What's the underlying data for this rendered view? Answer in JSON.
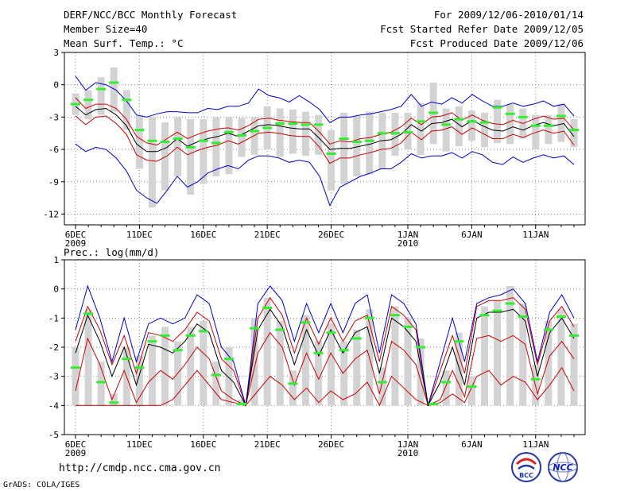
{
  "header": {
    "title": "DERF/NCC/BCC Monthly Forecast",
    "member_size": "Member Size=40",
    "variable": "Mean Surf. Temp.: °C",
    "forecast_period": "For 2009/12/06-2010/01/14",
    "start_date": "Fcst Started Refer Date 2009/12/05",
    "produced_date": "Fcst Produced Date 2009/12/06"
  },
  "footer": {
    "url": "http://cmdp.ncc.cma.gov.cn",
    "grads_credit": "GrADS: COLA/IGES",
    "logo_bcc_text": "BCC",
    "logo_ncc_text": "NCC"
  },
  "colors": {
    "obs_bar": "#d3d3d3",
    "ensemble_mean": "#000000",
    "inner_spread": "#cc0000",
    "outer_envelope": "#0000cc",
    "marker": "#33ee33",
    "grid": "#808080"
  },
  "chart_data": [
    {
      "type": "box-line",
      "title": "Mean Surf. Temp.: °C",
      "x_tick_labels": [
        "6DEC",
        "11DEC",
        "16DEC",
        "21DEC",
        "26DEC",
        "1JAN",
        "6JAN",
        "11JAN"
      ],
      "x_tick_days": [
        0,
        5,
        10,
        15,
        20,
        26,
        31,
        36
      ],
      "x_year_labels": [
        {
          "day": 0,
          "label": "2009"
        },
        {
          "day": 26,
          "label": "2010"
        }
      ],
      "days": 40,
      "ylim": [
        -13,
        3
      ],
      "yticks": [
        3,
        0,
        -3,
        -6,
        -9,
        -12
      ],
      "grid": true,
      "series": [
        {
          "name": "ensemble mean",
          "values": [
            -2.0,
            -2.8,
            -2.3,
            -2.2,
            -2.8,
            -3.8,
            -5.5,
            -6.2,
            -6.2,
            -5.8,
            -5.0,
            -5.7,
            -5.3,
            -5.0,
            -4.8,
            -4.5,
            -4.8,
            -4.3,
            -3.8,
            -3.7,
            -3.8,
            -4.0,
            -4.1,
            -4.1,
            -5.0,
            -6.0,
            -5.9,
            -5.9,
            -5.7,
            -5.5,
            -5.2,
            -5.1,
            -4.6,
            -3.7,
            -4.3,
            -3.6,
            -3.5,
            -3.2,
            -3.9,
            -3.3,
            -3.8,
            -4.2,
            -4.3,
            -3.9,
            -4.2,
            -3.8,
            -3.5,
            -3.8,
            -3.6,
            -4.8
          ]
        },
        {
          "name": "inner upper",
          "values": [
            -1.2,
            -2.2,
            -1.8,
            -1.8,
            -2.2,
            -3.2,
            -4.8,
            -5.4,
            -5.6,
            -5.0,
            -4.4,
            -5.0,
            -4.6,
            -4.3,
            -4.1,
            -4.0,
            -4.2,
            -3.8,
            -3.2,
            -3.1,
            -3.3,
            -3.4,
            -3.5,
            -3.5,
            -4.4,
            -5.5,
            -5.2,
            -5.3,
            -5.0,
            -4.9,
            -4.6,
            -4.4,
            -3.9,
            -3.1,
            -3.7,
            -3.0,
            -2.9,
            -2.6,
            -3.3,
            -2.8,
            -3.3,
            -3.6,
            -3.7,
            -3.3,
            -3.6,
            -3.2,
            -2.9,
            -3.2,
            -3.1,
            -4.2
          ]
        },
        {
          "name": "inner lower",
          "values": [
            -2.9,
            -3.7,
            -3.0,
            -2.9,
            -3.6,
            -4.6,
            -6.5,
            -7.0,
            -7.1,
            -6.6,
            -5.8,
            -6.5,
            -6.1,
            -5.8,
            -5.6,
            -5.2,
            -5.5,
            -5.0,
            -4.5,
            -4.4,
            -4.5,
            -4.7,
            -4.8,
            -4.8,
            -5.8,
            -7.3,
            -6.8,
            -6.8,
            -6.5,
            -6.3,
            -6.0,
            -5.9,
            -5.4,
            -4.4,
            -5.1,
            -4.3,
            -4.2,
            -3.9,
            -4.6,
            -4.0,
            -4.5,
            -5.0,
            -5.0,
            -4.6,
            -4.9,
            -4.5,
            -4.2,
            -4.5,
            -4.3,
            -5.6
          ]
        },
        {
          "name": "upper envelope",
          "values": [
            0.8,
            -0.5,
            0.2,
            0.0,
            -0.5,
            -1.5,
            -2.8,
            -3.0,
            -2.7,
            -2.5,
            -2.5,
            -2.6,
            -2.6,
            -2.2,
            -2.3,
            -2.0,
            -2.0,
            -1.7,
            -0.4,
            -1.0,
            -1.2,
            -1.6,
            -1.0,
            -1.6,
            -2.3,
            -3.5,
            -3.0,
            -3.0,
            -2.8,
            -2.7,
            -2.5,
            -2.3,
            -2.0,
            -0.9,
            -2.0,
            -1.6,
            -1.8,
            -1.2,
            -1.7,
            -0.9,
            -1.5,
            -2.0,
            -2.0,
            -1.7,
            -2.0,
            -1.8,
            -1.5,
            -2.0,
            -1.8,
            -2.9
          ]
        },
        {
          "name": "lower envelope",
          "values": [
            -5.5,
            -6.2,
            -5.8,
            -6.0,
            -6.8,
            -8.0,
            -9.8,
            -10.5,
            -11.0,
            -9.8,
            -8.5,
            -9.5,
            -9.0,
            -8.2,
            -7.8,
            -7.5,
            -7.8,
            -7.0,
            -6.6,
            -6.6,
            -6.8,
            -7.2,
            -7.0,
            -7.2,
            -8.5,
            -11.2,
            -9.5,
            -9.0,
            -8.5,
            -8.2,
            -7.8,
            -7.8,
            -7.2,
            -6.4,
            -6.8,
            -6.6,
            -6.6,
            -6.3,
            -6.8,
            -6.2,
            -6.5,
            -7.2,
            -7.4,
            -6.7,
            -7.2,
            -6.8,
            -6.5,
            -6.8,
            -6.6,
            -7.4
          ]
        },
        {
          "name": "obs markers",
          "values": [
            -1.8,
            -1.4,
            -0.4,
            0.2,
            -1.4,
            -4.2,
            -5.2,
            -5.3,
            -5.0,
            -5.8,
            -5.2,
            -5.4,
            -4.4,
            -4.7,
            -4.3,
            -4.0,
            -3.6,
            -3.6,
            -3.7,
            -3.7,
            -6.4,
            -5.0,
            -5.3,
            -5.2,
            -4.5,
            -4.5,
            -4.4,
            -3.4,
            -2.6,
            -3.7,
            -3.2,
            -3.4,
            -3.5,
            -2.1,
            -2.7,
            -3.0,
            -3.8,
            -3.8,
            -2.9,
            -4.2
          ]
        },
        {
          "name": "bar top",
          "values": [
            -0.8,
            -0.5,
            0.7,
            1.6,
            -0.5,
            -2.8,
            -3.0,
            -3.5,
            -3.0,
            -3.2,
            -3.2,
            -3.0,
            -3.0,
            -3.1,
            -3.0,
            -2.0,
            -2.2,
            -2.3,
            -2.5,
            -2.8,
            -4.2,
            -2.6,
            -2.9,
            -2.5,
            -2.6,
            -2.6,
            -2.6,
            -1.7,
            0.2,
            -2.2,
            -2.0,
            -2.4,
            -2.6,
            -1.4,
            -1.8,
            -2.2,
            -2.8,
            -2.8,
            -1.8,
            -3.2
          ]
        },
        {
          "name": "bar bottom",
          "values": [
            -2.8,
            -3.2,
            -2.8,
            -2.5,
            -4.2,
            -7.8,
            -11.4,
            -9.8,
            -8.5,
            -10.2,
            -9.2,
            -8.5,
            -8.3,
            -6.7,
            -6.5,
            -6.0,
            -6.7,
            -6.4,
            -6.6,
            -6.5,
            -9.8,
            -9.2,
            -8.5,
            -8.3,
            -7.8,
            -6.6,
            -6.0,
            -6.5,
            -5.5,
            -6.2,
            -5.7,
            -5.2,
            -5.8,
            -5.4,
            -5.5,
            -5.0,
            -6.0,
            -5.5,
            -5.3,
            -5.8
          ]
        }
      ]
    },
    {
      "type": "box-line",
      "title": "Prec.: log(mm/d)",
      "x_tick_labels": [
        "6DEC",
        "11DEC",
        "16DEC",
        "21DEC",
        "26DEC",
        "1JAN",
        "6JAN",
        "11JAN"
      ],
      "x_tick_days": [
        0,
        5,
        10,
        15,
        20,
        26,
        31,
        36
      ],
      "x_year_labels": [
        {
          "day": 0,
          "label": "2009"
        },
        {
          "day": 26,
          "label": "2010"
        }
      ],
      "days": 40,
      "ylim": [
        -5,
        1
      ],
      "yticks": [
        1,
        0,
        -1,
        -2,
        -3,
        -4,
        -5
      ],
      "grid": true,
      "series": [
        {
          "name": "ensemble mean",
          "values": [
            -2.2,
            -0.9,
            -1.8,
            -3.0,
            -2.0,
            -3.3,
            -1.9,
            -2.0,
            -2.2,
            -1.8,
            -1.2,
            -1.5,
            -2.8,
            -3.2,
            -4.0,
            -1.4,
            -0.7,
            -1.3,
            -2.6,
            -1.4,
            -2.3,
            -1.4,
            -2.2,
            -1.5,
            -1.3,
            -2.9,
            -1.0,
            -1.3,
            -1.8,
            -4.0,
            -3.2,
            -2.0,
            -3.3,
            -1.0,
            -0.8,
            -0.8,
            -0.7,
            -1.1,
            -3.0,
            -1.5,
            -1.0,
            -1.7
          ]
        },
        {
          "name": "inner upper",
          "values": [
            -1.8,
            -0.6,
            -1.4,
            -2.6,
            -1.6,
            -2.9,
            -1.5,
            -1.6,
            -1.8,
            -1.4,
            -0.8,
            -1.1,
            -2.4,
            -2.8,
            -4.0,
            -1.0,
            -0.3,
            -0.9,
            -2.2,
            -1.0,
            -1.9,
            -1.0,
            -1.8,
            -1.1,
            -0.9,
            -2.5,
            -0.6,
            -0.9,
            -1.4,
            -4.0,
            -2.8,
            -1.6,
            -2.9,
            -0.6,
            -0.4,
            -0.4,
            -0.3,
            -0.7,
            -2.6,
            -1.1,
            -0.6,
            -1.3
          ]
        },
        {
          "name": "inner lower",
          "values": [
            -3.5,
            -1.7,
            -2.6,
            -3.8,
            -2.8,
            -3.9,
            -3.2,
            -2.8,
            -3.1,
            -2.6,
            -2.0,
            -2.4,
            -3.5,
            -3.8,
            -4.0,
            -2.2,
            -1.5,
            -2.0,
            -3.3,
            -2.2,
            -3.1,
            -2.2,
            -2.9,
            -2.4,
            -2.1,
            -3.6,
            -1.8,
            -2.1,
            -2.6,
            -4.0,
            -3.8,
            -2.8,
            -3.7,
            -1.7,
            -1.6,
            -1.8,
            -1.6,
            -1.9,
            -3.6,
            -2.3,
            -1.8,
            -2.4
          ]
        },
        {
          "name": "upper envelope",
          "values": [
            -1.4,
            0.1,
            -1.0,
            -2.5,
            -1.0,
            -2.5,
            -1.2,
            -1.0,
            -1.2,
            -1.0,
            -0.2,
            -0.5,
            -2.0,
            -2.5,
            -4.0,
            -0.5,
            0.1,
            -0.4,
            -1.8,
            -0.5,
            -1.5,
            -0.5,
            -1.5,
            -0.5,
            -0.2,
            -2.2,
            -0.2,
            -0.5,
            -1.2,
            -4.0,
            -2.5,
            -1.0,
            -2.5,
            -0.5,
            -0.3,
            -0.2,
            0.0,
            -0.5,
            -2.5,
            -0.8,
            -0.2,
            -1.0
          ]
        },
        {
          "name": "outer lower",
          "values": [
            -4.0,
            -4.0,
            -4.0,
            -4.0,
            -4.0,
            -4.0,
            -4.0,
            -4.0,
            -3.8,
            -3.3,
            -2.8,
            -3.3,
            -3.8,
            -3.9,
            -4.0,
            -3.5,
            -3.0,
            -3.3,
            -3.8,
            -3.4,
            -3.9,
            -3.5,
            -3.8,
            -3.6,
            -3.2,
            -4.0,
            -3.0,
            -3.4,
            -3.8,
            -4.0,
            -3.9,
            -3.6,
            -3.9,
            -3.0,
            -2.8,
            -3.3,
            -3.0,
            -3.2,
            -3.8,
            -3.3,
            -2.7,
            -3.5
          ]
        },
        {
          "name": "obs markers",
          "values": [
            -2.7,
            -0.85,
            -3.2,
            -3.9,
            -2.4,
            -2.7,
            -1.8,
            -1.6,
            -2.1,
            -1.6,
            -1.45,
            -2.95,
            -2.4,
            -3.95,
            -1.35,
            -0.65,
            -1.4,
            -3.25,
            -1.15,
            -2.2,
            -1.5,
            -2.1,
            -1.7,
            -1.0,
            -3.2,
            -0.9,
            -1.3,
            -2.0,
            -3.95,
            -3.2,
            -1.8,
            -3.35,
            -0.9,
            -0.75,
            -0.5,
            -0.95,
            -3.1,
            -1.4,
            -0.95,
            -1.6
          ]
        },
        {
          "name": "bar top",
          "values": [
            -2.0,
            -0.7,
            -2.5,
            -3.6,
            -2.0,
            -2.3,
            -1.6,
            -1.3,
            -1.8,
            -1.3,
            -1.1,
            -2.5,
            -2.0,
            -3.8,
            -1.0,
            -0.3,
            -1.1,
            -2.8,
            -0.9,
            -1.8,
            -1.2,
            -1.8,
            -1.4,
            -0.7,
            -2.7,
            -0.6,
            -1.0,
            -1.7,
            -3.9,
            -2.8,
            -1.5,
            -3.0,
            -0.6,
            -0.4,
            0.1,
            -0.5,
            -2.6,
            -1.1,
            -0.7,
            -1.2
          ]
        },
        {
          "name": "bar bottom",
          "values": [
            -4.0,
            -4.0,
            -4.0,
            -4.0,
            -4.0,
            -4.0,
            -4.0,
            -4.0,
            -4.0,
            -4.0,
            -4.0,
            -4.0,
            -4.0,
            -4.0,
            -4.0,
            -4.0,
            -4.0,
            -4.0,
            -4.0,
            -4.0,
            -4.0,
            -4.0,
            -4.0,
            -4.0,
            -4.0,
            -4.0,
            -4.0,
            -4.0,
            -4.0,
            -4.0,
            -4.0,
            -4.0,
            -4.0,
            -4.0,
            -4.0,
            -4.0,
            -4.0,
            -4.0,
            -4.0,
            -4.0
          ]
        }
      ]
    }
  ]
}
